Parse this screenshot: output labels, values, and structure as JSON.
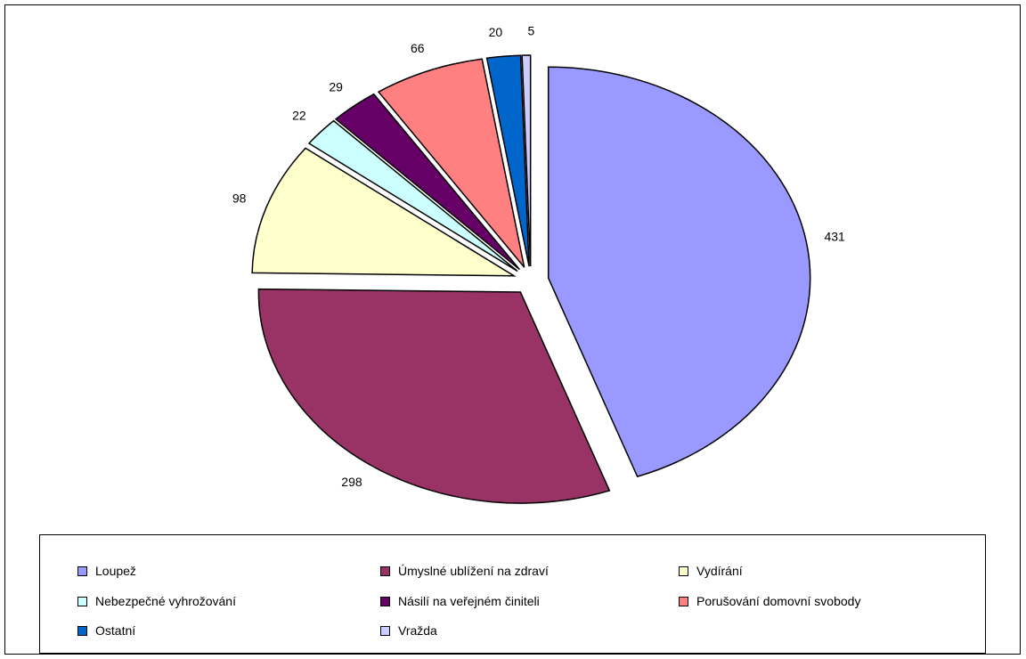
{
  "chart_data": {
    "type": "pie",
    "title": "",
    "categories": [
      "Loupež",
      "Úmyslné ublížení na zdraví",
      "Vydírání",
      "Nebezpečné vyhrožování",
      "Násilí na veřejném činiteli",
      "Porušování domovní svobody",
      "Ostatní",
      "Vražda"
    ],
    "values": [
      431,
      298,
      98,
      22,
      29,
      66,
      20,
      5
    ],
    "value_labels": [
      "431",
      "298",
      "98",
      "22",
      "29",
      "66",
      "20",
      "5"
    ],
    "colors": [
      "#9999ff",
      "#993366",
      "#ffffcc",
      "#ccffff",
      "#660066",
      "#ff8080",
      "#0066cc",
      "#ccccff"
    ],
    "exploded": true,
    "legend_position": "bottom",
    "grid": false
  }
}
